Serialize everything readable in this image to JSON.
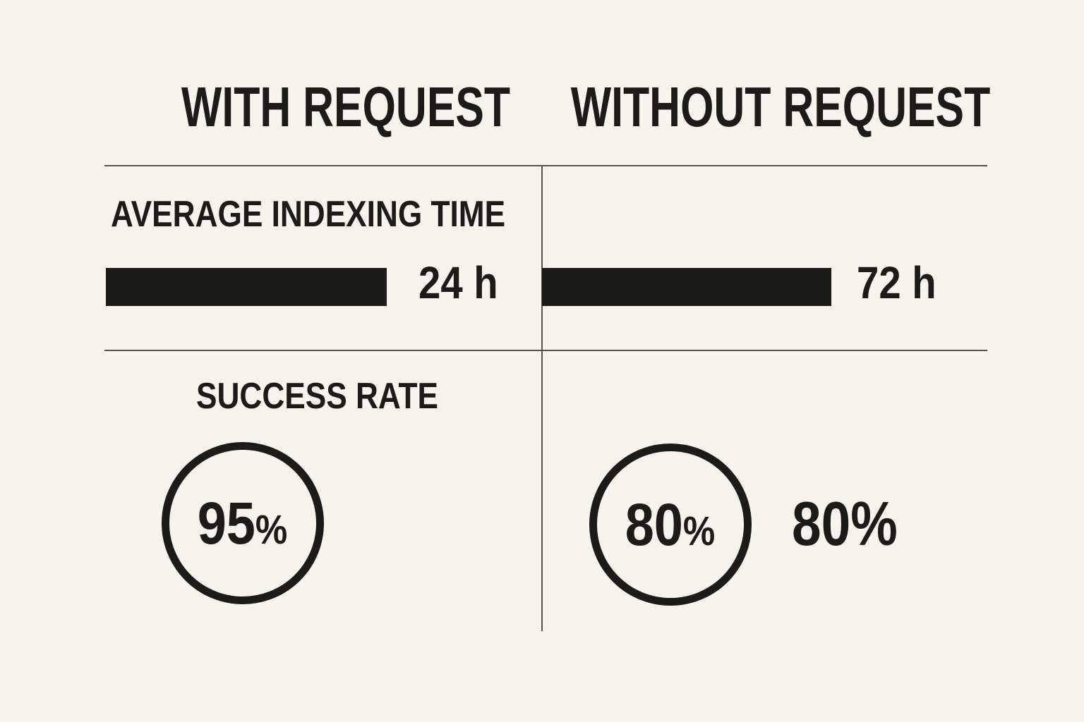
{
  "colors": {
    "background": "#f7f4ee",
    "ink": "#1d1b17",
    "divider": "#55514b"
  },
  "columns": {
    "with": {
      "header": "WITH REQUEST"
    },
    "without": {
      "header": "WITHOUT REQUEST"
    }
  },
  "metrics": {
    "indexing": {
      "label": "AVERAGE INDEXING TIME",
      "with_request": "24 h",
      "without_request": "72 h"
    },
    "success": {
      "label": "SUCCESS RATE",
      "with_request_value": "95",
      "without_request_value": "80",
      "percent_sign": "%",
      "without_request_outside": "80%"
    }
  },
  "chart_data": {
    "type": "table",
    "title": "",
    "columns": [
      "WITH REQUEST",
      "WITHOUT REQUEST"
    ],
    "rows": [
      {
        "metric": "AVERAGE INDEXING TIME",
        "values": [
          "24 h",
          "72 h"
        ],
        "values_hours": [
          24,
          72
        ],
        "visual": "horizontal-bars"
      },
      {
        "metric": "SUCCESS RATE",
        "values": [
          "95%",
          "80%"
        ],
        "values_percent": [
          95,
          80
        ],
        "visual": "circled-values"
      }
    ],
    "legend_position": "none",
    "grid": "thin divider lines between header row, metric rows, and the two columns"
  }
}
